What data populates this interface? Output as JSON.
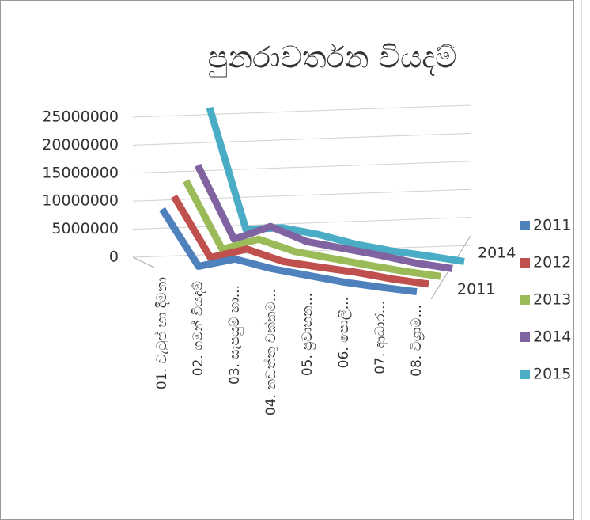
{
  "chart_data": {
    "type": "line3d",
    "title": "පුනරාවර්තන වියදම්",
    "categories": [
      "01. වැටුප් හා දීමනා",
      "02. ගමන් වියදම්",
      "03. සැපයුම් හා...",
      "04. නඩත්තු වක්කම...",
      "05. ප්‍රවාහන...",
      "06. පොලී...",
      "07. ආධාර...",
      "08. විශ්‍රාම..."
    ],
    "series": [
      {
        "name": "2011",
        "color": "#4f81bd",
        "values": [
          10000000,
          500000,
          2500000,
          1500000,
          1000000,
          500000,
          300000,
          200000
        ]
      },
      {
        "name": "2012",
        "color": "#c0504d",
        "values": [
          11000000,
          800000,
          3000000,
          1500000,
          1200000,
          1000000,
          500000,
          300000
        ]
      },
      {
        "name": "2013",
        "color": "#9bbb59",
        "values": [
          12500000,
          1000000,
          3500000,
          2000000,
          1500000,
          1000000,
          600000,
          400000
        ]
      },
      {
        "name": "2014",
        "color": "#8064a2",
        "values": [
          14000000,
          1500000,
          4500000,
          2500000,
          2000000,
          1500000,
          800000,
          500000
        ]
      },
      {
        "name": "2015",
        "color": "#4bacc6",
        "values": [
          23000000,
          2000000,
          3000000,
          2500000,
          1500000,
          1000000,
          800000,
          500000
        ]
      }
    ],
    "depth_labels": [
      "2011",
      "2014"
    ],
    "ylim": [
      0,
      25000000
    ],
    "yticks": [
      0,
      5000000,
      10000000,
      15000000,
      20000000,
      25000000
    ],
    "grid": true,
    "legend": "right"
  }
}
